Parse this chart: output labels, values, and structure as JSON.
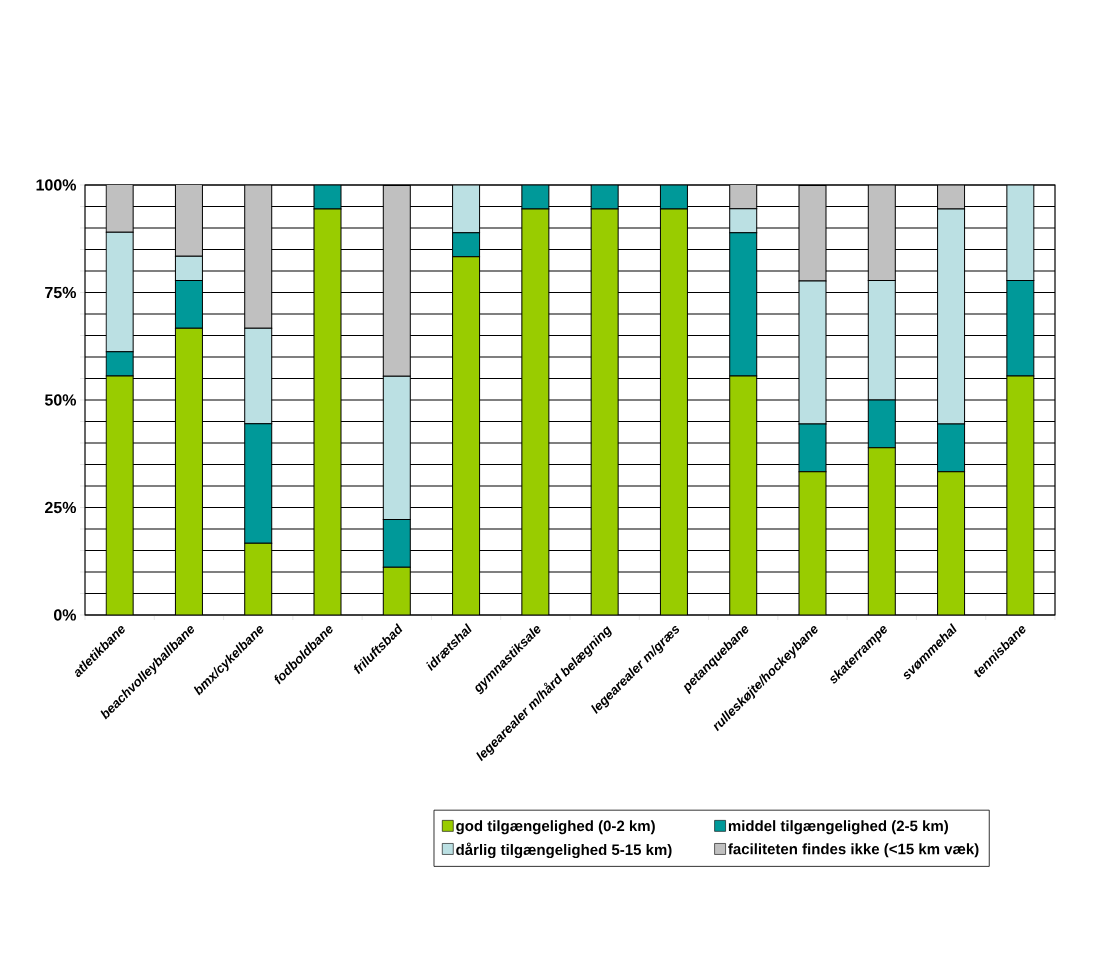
{
  "chart_data": {
    "type": "bar",
    "stacked": true,
    "grid": "y",
    "legend": "bottom",
    "categories": [
      "atletikbane",
      "beachvolleyballbane",
      "bmx/cykelbane",
      "fodboldbane",
      "friluftsbad",
      "idrætshal",
      "gymnastiksale",
      "legearealer m/hård belægning",
      "legearealer m/græs",
      "petanquebane",
      "rulleskøjte/hockeybane",
      "skaterrampe",
      "svømmehal",
      "tennisbane"
    ],
    "series": [
      {
        "name": "god tilgængelighed (0-2 km)",
        "color": "#99cc00",
        "values": [
          55.6,
          66.7,
          16.7,
          94.4,
          11.1,
          83.3,
          94.4,
          94.4,
          94.4,
          55.6,
          33.3,
          38.9,
          33.3,
          55.6
        ]
      },
      {
        "name": "middel tilgængelighed (2-5 km)",
        "color": "#009999",
        "values": [
          5.6,
          11.1,
          27.8,
          5.6,
          11.1,
          5.6,
          5.6,
          5.6,
          5.6,
          33.3,
          11.1,
          11.1,
          11.1,
          22.2
        ]
      },
      {
        "name": "dårlig tilgængelighed 5-15 km)",
        "color": "#bbe0e3",
        "values": [
          27.8,
          5.6,
          22.2,
          0,
          33.3,
          11.1,
          0,
          0,
          0,
          5.6,
          33.3,
          27.8,
          50.0,
          22.2
        ]
      },
      {
        "name": "faciliteten findes ikke (<15 km væk)",
        "color": "#c0c0c0",
        "values": [
          11.1,
          16.7,
          33.3,
          0,
          44.4,
          0,
          0,
          0,
          0,
          5.6,
          22.2,
          22.2,
          5.6,
          0
        ]
      }
    ],
    "ylim": [
      0,
      100
    ],
    "yticks": [
      {
        "value": 0,
        "label": "0%"
      },
      {
        "value": 25,
        "label": "25%"
      },
      {
        "value": 50,
        "label": "50%"
      },
      {
        "value": 75,
        "label": "75%"
      },
      {
        "value": 100,
        "label": "100%"
      }
    ]
  }
}
